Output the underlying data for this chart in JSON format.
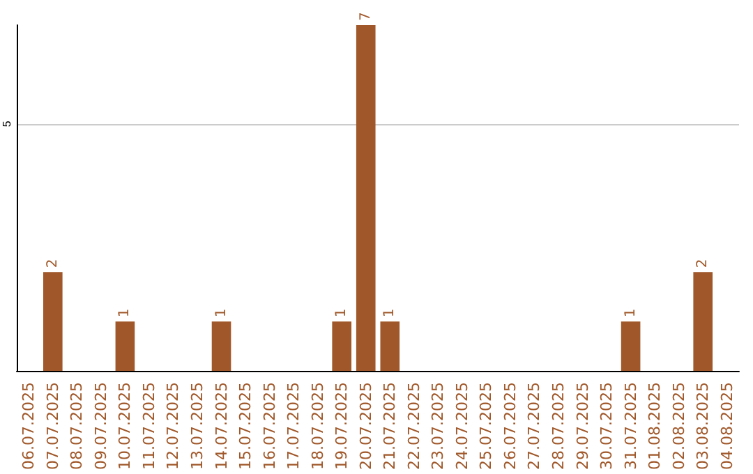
{
  "chart_data": {
    "type": "bar",
    "categories": [
      "06.07.2025",
      "07.07.2025",
      "08.07.2025",
      "09.07.2025",
      "10.07.2025",
      "11.07.2025",
      "12.07.2025",
      "13.07.2025",
      "14.07.2025",
      "15.07.2025",
      "16.07.2025",
      "17.07.2025",
      "18.07.2025",
      "19.07.2025",
      "20.07.2025",
      "21.07.2025",
      "22.07.2025",
      "23.07.2025",
      "24.07.2025",
      "25.07.2025",
      "26.07.2025",
      "27.07.2025",
      "28.07.2025",
      "29.07.2025",
      "30.07.2025",
      "31.07.2025",
      "01.08.2025",
      "02.08.2025",
      "03.08.2025",
      "04.08.2025"
    ],
    "values": [
      0,
      2,
      0,
      0,
      1,
      0,
      0,
      0,
      1,
      0,
      0,
      0,
      0,
      1,
      7,
      1,
      0,
      0,
      0,
      0,
      0,
      0,
      0,
      0,
      0,
      1,
      0,
      0,
      2,
      0
    ],
    "value_labels": [
      null,
      "2",
      null,
      null,
      "1",
      null,
      null,
      null,
      "1",
      null,
      null,
      null,
      null,
      "1",
      "7",
      "1",
      null,
      null,
      null,
      null,
      null,
      null,
      null,
      null,
      null,
      "1",
      null,
      null,
      "2",
      null
    ],
    "color": "#a0582a",
    "ylim": [
      0,
      7
    ],
    "yticks": [
      5
    ],
    "grid": "y"
  }
}
